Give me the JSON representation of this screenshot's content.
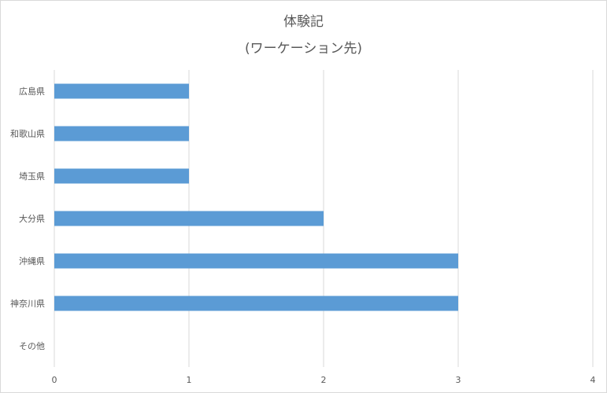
{
  "chart_data": {
    "type": "bar",
    "orientation": "horizontal",
    "title": [
      "体験記",
      "(ワーケーション先)"
    ],
    "categories": [
      "広島県",
      "和歌山県",
      "埼玉県",
      "大分県",
      "沖縄県",
      "神奈川県",
      "その他"
    ],
    "values": [
      1,
      1,
      1,
      2,
      3,
      3,
      0
    ],
    "xlim": [
      0,
      4
    ],
    "xticks": [
      0,
      1,
      2,
      3,
      4
    ],
    "grid": true,
    "legend": "none",
    "bar_color": "#5b9bd5",
    "grid_color": "#d9d9d9",
    "text_color": "#595959"
  }
}
